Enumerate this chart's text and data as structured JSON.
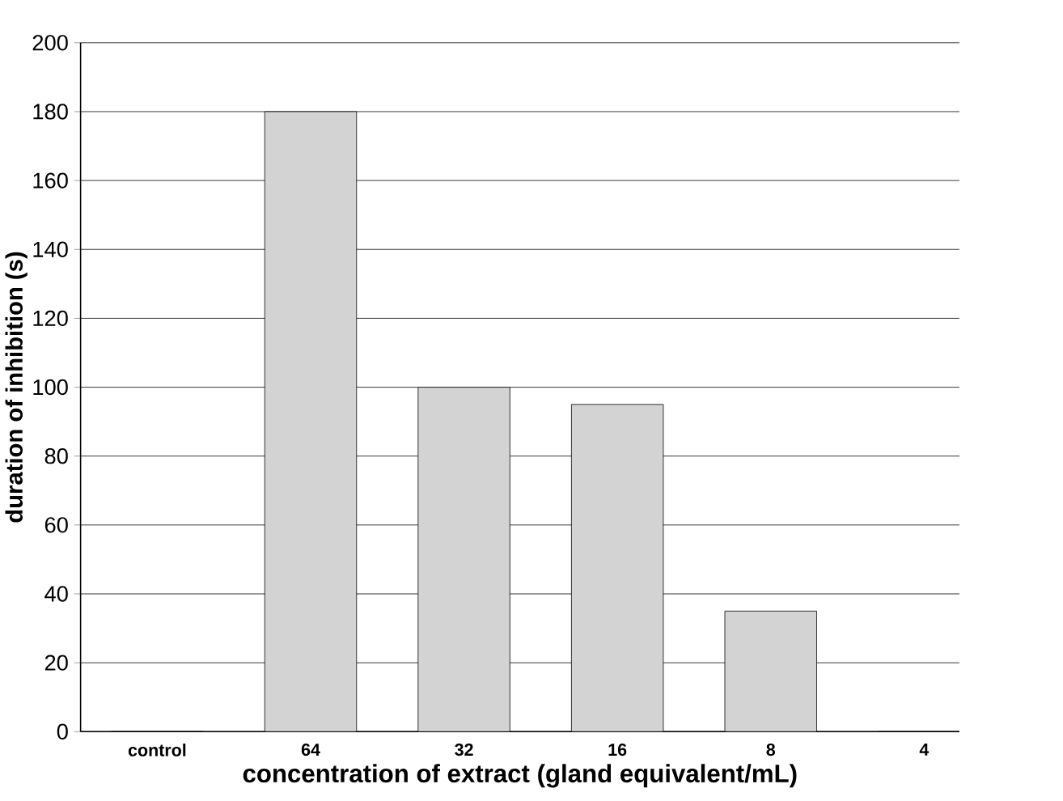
{
  "chart_data": {
    "type": "bar",
    "xlabel": "concentration of extract (gland equivalent/mL)",
    "ylabel": "duration of inhibition (s)",
    "categories": [
      "control",
      "64",
      "32",
      "16",
      "8",
      "4"
    ],
    "values": [
      0,
      180,
      100,
      95,
      35,
      0
    ],
    "color": "#d3d3d3",
    "ylim": [
      0,
      200
    ],
    "yticks": [
      0,
      20,
      40,
      60,
      80,
      100,
      120,
      140,
      160,
      180,
      200
    ],
    "grid": "y"
  }
}
